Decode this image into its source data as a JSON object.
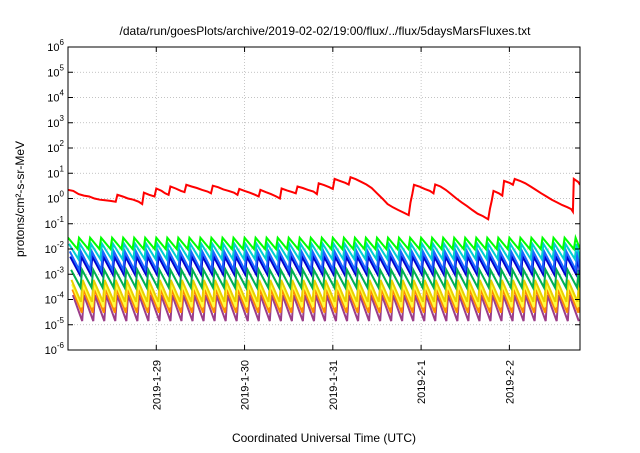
{
  "chart_data": {
    "type": "line",
    "title": "/data/run/goesPlots/archive/2019-02-02/19:00/flux/../flux/5daysMarsFluxes.txt",
    "xlabel": "Coordinated Universal Time (UTC)",
    "ylabel": "protons/cm²-s-sr-MeV",
    "yscale": "log",
    "ylim": [
      1e-06,
      1000000.0
    ],
    "xlim": [
      0,
      5.8
    ],
    "grid": true,
    "legend": "none",
    "y_ticks": [
      {
        "value": 1e-06,
        "base": "10",
        "exp": "-6"
      },
      {
        "value": 1e-05,
        "base": "10",
        "exp": "-5"
      },
      {
        "value": 0.0001,
        "base": "10",
        "exp": "-4"
      },
      {
        "value": 0.001,
        "base": "10",
        "exp": "-3"
      },
      {
        "value": 0.01,
        "base": "10",
        "exp": "-2"
      },
      {
        "value": 0.1,
        "base": "10",
        "exp": "-1"
      },
      {
        "value": 1.0,
        "base": "10",
        "exp": "0"
      },
      {
        "value": 10.0,
        "base": "10",
        "exp": "1"
      },
      {
        "value": 100.0,
        "base": "10",
        "exp": "2"
      },
      {
        "value": 1000.0,
        "base": "10",
        "exp": "3"
      },
      {
        "value": 10000.0,
        "base": "10",
        "exp": "4"
      },
      {
        "value": 100000.0,
        "base": "10",
        "exp": "5"
      },
      {
        "value": 1000000.0,
        "base": "10",
        "exp": "6"
      }
    ],
    "x_ticks": [
      {
        "value": 1.0,
        "label": "2019-1-29"
      },
      {
        "value": 2.0,
        "label": "2019-1-30"
      },
      {
        "value": 3.0,
        "label": "2019-1-31"
      },
      {
        "value": 4.0,
        "label": "2019-2-1"
      },
      {
        "value": 5.0,
        "label": "2019-2-2"
      }
    ],
    "series": [
      {
        "color": "#ff0000",
        "style": "sawtooth",
        "points": [
          [
            0.0,
            2.2
          ],
          [
            0.06,
            2.0
          ],
          [
            0.12,
            1.5
          ],
          [
            0.18,
            1.3
          ],
          [
            0.24,
            1.2
          ],
          [
            0.3,
            1.0
          ],
          [
            0.36,
            0.9
          ],
          [
            0.42,
            0.85
          ],
          [
            0.48,
            0.8
          ],
          [
            0.54,
            0.75
          ],
          [
            0.56,
            1.4
          ],
          [
            0.62,
            1.2
          ],
          [
            0.68,
            1.0
          ],
          [
            0.74,
            0.9
          ],
          [
            0.8,
            0.75
          ],
          [
            0.84,
            0.6
          ],
          [
            0.86,
            1.7
          ],
          [
            0.92,
            1.4
          ],
          [
            0.98,
            1.2
          ],
          [
            1.0,
            2.5
          ],
          [
            1.06,
            2.0
          ],
          [
            1.1,
            1.6
          ],
          [
            1.14,
            1.4
          ],
          [
            1.16,
            3.0
          ],
          [
            1.22,
            2.5
          ],
          [
            1.28,
            2.0
          ],
          [
            1.32,
            1.8
          ],
          [
            1.34,
            3.5
          ],
          [
            1.4,
            3.0
          ],
          [
            1.46,
            2.6
          ],
          [
            1.52,
            2.2
          ],
          [
            1.58,
            1.9
          ],
          [
            1.62,
            1.6
          ],
          [
            1.64,
            3.2
          ],
          [
            1.7,
            2.8
          ],
          [
            1.76,
            2.3
          ],
          [
            1.82,
            2.0
          ],
          [
            1.88,
            1.7
          ],
          [
            1.92,
            1.4
          ],
          [
            1.94,
            2.4
          ],
          [
            2.0,
            2.0
          ],
          [
            2.06,
            1.7
          ],
          [
            2.12,
            1.4
          ],
          [
            2.16,
            1.2
          ],
          [
            2.18,
            2.2
          ],
          [
            2.24,
            1.8
          ],
          [
            2.3,
            1.5
          ],
          [
            2.36,
            1.2
          ],
          [
            2.4,
            1.0
          ],
          [
            2.42,
            2.5
          ],
          [
            2.48,
            2.1
          ],
          [
            2.54,
            1.8
          ],
          [
            2.58,
            1.6
          ],
          [
            2.6,
            3.0
          ],
          [
            2.66,
            2.6
          ],
          [
            2.72,
            2.2
          ],
          [
            2.78,
            1.9
          ],
          [
            2.82,
            1.5
          ],
          [
            2.84,
            4.0
          ],
          [
            2.9,
            3.4
          ],
          [
            2.96,
            2.8
          ],
          [
            3.0,
            2.4
          ],
          [
            3.02,
            6.0
          ],
          [
            3.08,
            5.0
          ],
          [
            3.14,
            4.2
          ],
          [
            3.18,
            3.6
          ],
          [
            3.2,
            7.0
          ],
          [
            3.26,
            5.8
          ],
          [
            3.32,
            4.6
          ],
          [
            3.38,
            3.6
          ],
          [
            3.44,
            2.6
          ],
          [
            3.5,
            1.6
          ],
          [
            3.56,
            1.0
          ],
          [
            3.62,
            0.6
          ],
          [
            3.68,
            0.45
          ],
          [
            3.74,
            0.35
          ],
          [
            3.8,
            0.28
          ],
          [
            3.86,
            0.22
          ],
          [
            3.88,
            0.7
          ],
          [
            3.9,
            1.5
          ],
          [
            3.92,
            3.5
          ],
          [
            3.98,
            3.0
          ],
          [
            4.04,
            2.4
          ],
          [
            4.1,
            2.0
          ],
          [
            4.14,
            1.6
          ],
          [
            4.16,
            3.6
          ],
          [
            4.22,
            3.0
          ],
          [
            4.28,
            2.2
          ],
          [
            4.34,
            1.5
          ],
          [
            4.4,
            1.0
          ],
          [
            4.46,
            0.7
          ],
          [
            4.52,
            0.5
          ],
          [
            4.58,
            0.35
          ],
          [
            4.64,
            0.25
          ],
          [
            4.7,
            0.2
          ],
          [
            4.76,
            0.15
          ],
          [
            4.78,
            0.4
          ],
          [
            4.8,
            0.8
          ],
          [
            4.82,
            2.0
          ],
          [
            4.88,
            1.6
          ],
          [
            4.92,
            1.3
          ],
          [
            4.94,
            5.0
          ],
          [
            5.0,
            4.2
          ],
          [
            5.04,
            3.5
          ],
          [
            5.06,
            6.0
          ],
          [
            5.12,
            5.0
          ],
          [
            5.18,
            4.0
          ],
          [
            5.24,
            3.0
          ],
          [
            5.3,
            2.2
          ],
          [
            5.36,
            1.6
          ],
          [
            5.42,
            1.2
          ],
          [
            5.48,
            0.9
          ],
          [
            5.54,
            0.7
          ],
          [
            5.6,
            0.55
          ],
          [
            5.66,
            0.45
          ],
          [
            5.7,
            0.38
          ],
          [
            5.72,
            0.3
          ],
          [
            5.73,
            6.0
          ],
          [
            5.78,
            4.5
          ],
          [
            5.8,
            3.5
          ]
        ]
      },
      {
        "color": "#00ff00",
        "style": "comb",
        "top": 0.028,
        "bottom": 0.01,
        "phase": 0.0
      },
      {
        "color": "#00d0d0",
        "style": "comb",
        "top": 0.016,
        "bottom": 0.004,
        "phase": 0.01
      },
      {
        "color": "#1a66ff",
        "style": "comb",
        "top": 0.008,
        "bottom": 0.0015,
        "phase": 0.02
      },
      {
        "color": "#0000cc",
        "style": "comb",
        "top": 0.005,
        "bottom": 0.001,
        "phase": 0.025
      },
      {
        "color": "#00b050",
        "style": "comb",
        "top": 0.0015,
        "bottom": 0.0003,
        "phase": 0.035
      },
      {
        "color": "#e8d000",
        "style": "comb",
        "top": 0.0006,
        "bottom": 8e-05,
        "phase": 0.04
      },
      {
        "color": "#ffff40",
        "style": "comb",
        "top": 0.0004,
        "bottom": 5e-05,
        "phase": 0.045
      },
      {
        "color": "#ff8c00",
        "style": "comb",
        "top": 0.00025,
        "bottom": 3e-05,
        "phase": 0.05
      },
      {
        "color": "#9b3d8a",
        "style": "comb",
        "top": 0.00015,
        "bottom": 1.4e-05,
        "phase": 0.055
      }
    ],
    "comb_period": 0.125
  }
}
